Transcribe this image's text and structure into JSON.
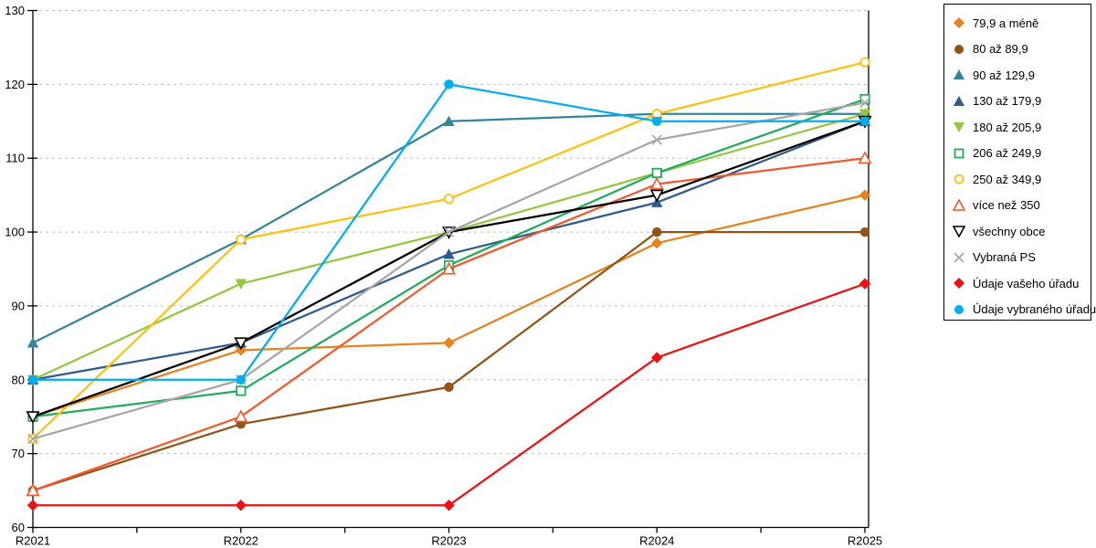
{
  "chart_data": {
    "type": "line",
    "title": "",
    "xlabel": "",
    "ylabel": "",
    "categories": [
      "R2021",
      "R2022",
      "R2023",
      "R2024",
      "R2025"
    ],
    "ylim": [
      60,
      130
    ],
    "yticks": [
      60,
      70,
      80,
      90,
      100,
      110,
      120,
      130
    ],
    "grid": "horizontal-dashed",
    "legend_position": "right-outside",
    "series": [
      {
        "name": "79,9 a méně",
        "marker": "diamond",
        "color": "#E8821E",
        "values": [
          75,
          84,
          85,
          98.5,
          105
        ]
      },
      {
        "name": "80 až 89,9",
        "marker": "circle",
        "color": "#935317",
        "values": [
          65,
          74,
          79,
          100,
          100
        ]
      },
      {
        "name": "90 až 129,9",
        "marker": "triangle-up",
        "color": "#31859C",
        "values": [
          85,
          99,
          115,
          116,
          116
        ]
      },
      {
        "name": "130 až 179,9",
        "marker": "triangle-up",
        "color": "#2F5B8F",
        "values": [
          80,
          85,
          97,
          104,
          115
        ]
      },
      {
        "name": "180 až 205,9",
        "marker": "triangle-down",
        "color": "#92C83E",
        "values": [
          80,
          93,
          100,
          108,
          116
        ]
      },
      {
        "name": "206 až 249,9",
        "marker": "square-open",
        "color": "#1FAD59",
        "values": [
          75,
          78.5,
          95.5,
          108,
          118
        ]
      },
      {
        "name": "250 až 349,9",
        "marker": "circle-open",
        "color": "#FFC010",
        "values": [
          72,
          99,
          104.5,
          116,
          123
        ]
      },
      {
        "name": "více než 350",
        "marker": "triangle-up-open",
        "color": "#F1592A",
        "values": [
          65,
          75,
          95,
          106.5,
          110
        ]
      },
      {
        "name": "všechny obce",
        "marker": "triangle-down-open",
        "color": "#000000",
        "values": [
          75,
          85,
          100,
          105,
          115
        ]
      },
      {
        "name": "Vybraná PS",
        "marker": "x",
        "color": "#A6A6A6",
        "values": [
          72,
          80,
          100,
          112.5,
          117.5
        ]
      },
      {
        "name": "Údaje vašeho úřadu",
        "marker": "diamond",
        "color": "#EE1111",
        "values": [
          63,
          63,
          63,
          83,
          93
        ]
      },
      {
        "name": "Údaje vybraného úřadu",
        "marker": "circle",
        "color": "#00AEEF",
        "values": [
          80,
          80,
          120,
          115,
          115
        ]
      }
    ]
  },
  "colors": {
    "gridline": "#C0C0C0",
    "axis": "#000000",
    "background": "#FFFFFF"
  }
}
